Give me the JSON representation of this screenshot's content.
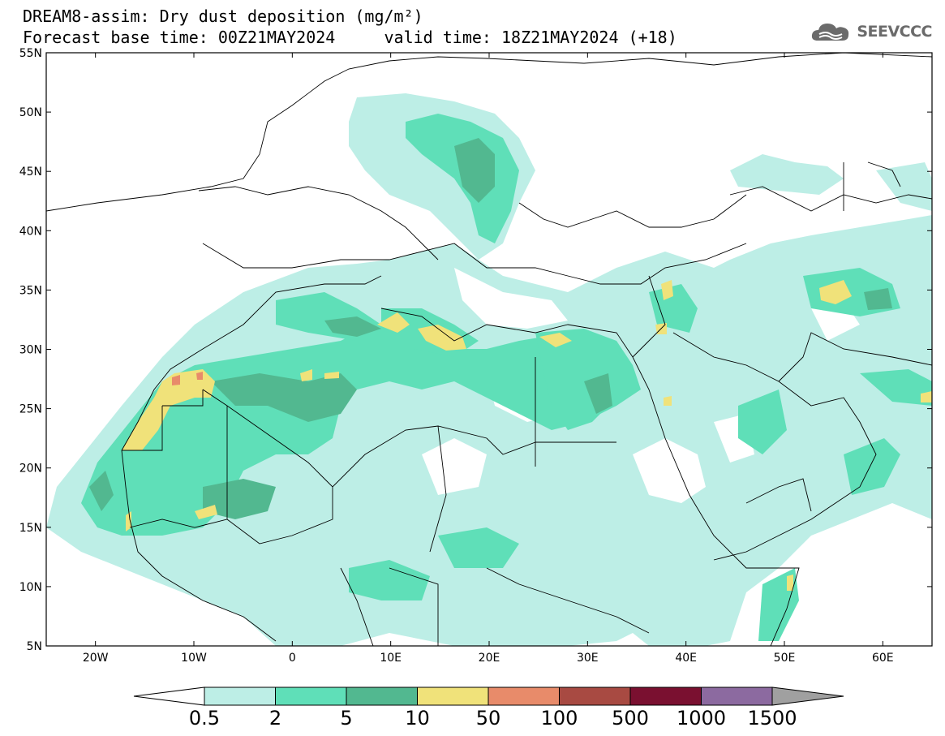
{
  "header": {
    "title_line1": "DREAM8-assim: Dry dust deposition (mg/m²)",
    "title_line2": "Forecast base time: 00Z21MAY2024     valid time: 18Z21MAY2024 (+18)",
    "logo_text": "SEEVCCC"
  },
  "map": {
    "lon_range": [
      -25,
      65
    ],
    "lat_range": [
      5,
      55
    ],
    "lat_ticks": [
      "55N",
      "50N",
      "45N",
      "40N",
      "35N",
      "30N",
      "25N",
      "20N",
      "15N",
      "10N",
      "5N"
    ],
    "lon_ticks": [
      "20W",
      "10W",
      "0",
      "10E",
      "20E",
      "30E",
      "40E",
      "50E",
      "60E"
    ]
  },
  "legend": {
    "colors": [
      "#bdeee6",
      "#5fdfb8",
      "#52b890",
      "#f0e27a",
      "#e88b6a",
      "#a84a42",
      "#7a1030",
      "#8c6aa0",
      "#a0a0a0"
    ],
    "labels": [
      "0.5",
      "2",
      "5",
      "10",
      "50",
      "100",
      "500",
      "1000",
      "1500"
    ]
  }
}
